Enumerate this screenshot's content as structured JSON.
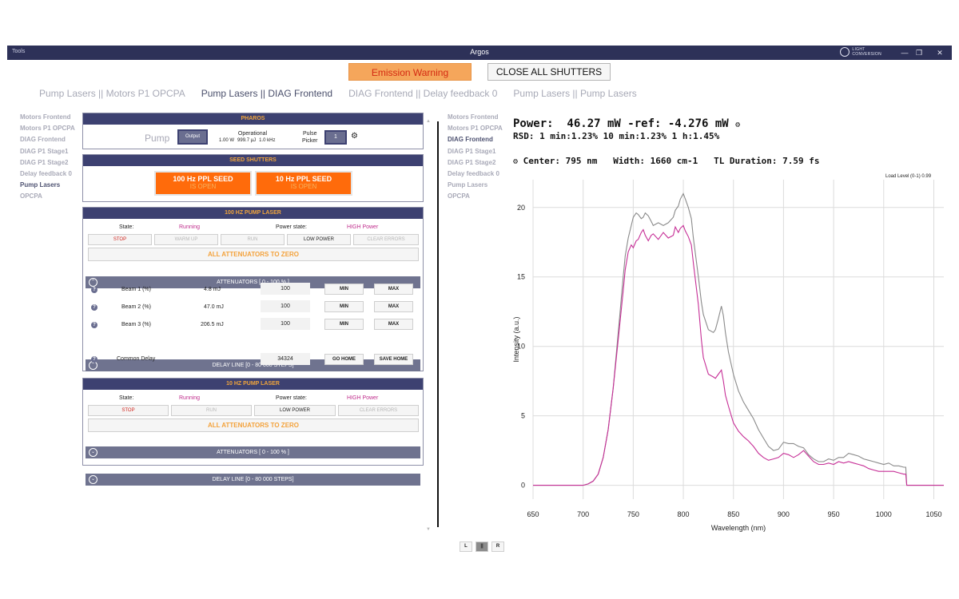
{
  "window": {
    "menu_label": "Tools",
    "title": "Argos",
    "logo_line1": "LIGHT",
    "logo_line2": "CONVERSION",
    "minimize": "—",
    "maximize": "❐",
    "close": "✕"
  },
  "top_buttons": {
    "emission_warning": "Emission Warning",
    "close_shutters": "CLOSE ALL SHUTTERS"
  },
  "tabs": [
    {
      "label": "Pump Lasers || Motors P1 OPCPA",
      "active": false
    },
    {
      "label": "Pump Lasers || DIAG Frontend",
      "active": true
    },
    {
      "label": "DIAG Frontend || Delay feedback 0",
      "active": false
    },
    {
      "label": "Pump Lasers || Pump Lasers",
      "active": false
    }
  ],
  "left_nav": [
    "Motors Frontend",
    "Motors P1 OPCPA",
    "DIAG Frontend",
    "DIAG P1 Stage1",
    "DIAG P1 Stage2",
    "Delay feedback 0",
    "Pump Lasers",
    "OPCPA"
  ],
  "left_nav_active": "Pump Lasers",
  "right_nav": [
    "Motors Frontend",
    "Motors P1 OPCPA",
    "DIAG Frontend",
    "DIAG P1 Stage1",
    "DIAG P1 Stage2",
    "Delay feedback 0",
    "Pump Lasers",
    "OPCPA"
  ],
  "right_nav_active": "DIAG Frontend",
  "pharos": {
    "header": "PHAROS",
    "pump_label": "Pump",
    "output_button": "Output",
    "status": "Operational",
    "power": "1.00 W",
    "energy": "999.7 µJ",
    "rate": "1.0 kHz",
    "pulse_picker_label1": "Pulse",
    "pulse_picker_label2": "Picker",
    "pulse_picker_value": "1",
    "settings_icon": "gear-icon"
  },
  "seed_shutters": {
    "header": "SEED SHUTTERS",
    "shutter_100": {
      "label": "100 Hz PPL SEED",
      "status": "IS OPEN"
    },
    "shutter_10": {
      "label": "10 Hz PPL SEED",
      "status": "IS OPEN"
    }
  },
  "laser_100hz": {
    "header": "100 HZ PUMP LASER",
    "state_label": "State:",
    "state_value": "Running",
    "power_state_label": "Power state:",
    "power_state_value": "HIGH Power",
    "buttons": {
      "stop": "STOP",
      "warm_up": "WARM UP",
      "run": "RUN",
      "low_power": "LOW POWER",
      "clear_errors": "CLEAR ERRORS"
    },
    "all_attenuators": "ALL ATTENUATORS TO ZERO",
    "attenuators_header": "ATTENUATORS [ 0 - 100 % ]",
    "beams": [
      {
        "name": "Beam 1 (%)",
        "energy": "4.8 mJ",
        "value": "100",
        "min": "MIN",
        "max": "MAX"
      },
      {
        "name": "Beam 2 (%)",
        "energy": "47.0 mJ",
        "value": "100",
        "min": "MIN",
        "max": "MAX"
      },
      {
        "name": "Beam 3 (%)",
        "energy": "206.5 mJ",
        "value": "100",
        "min": "MIN",
        "max": "MAX"
      }
    ],
    "delay_header": "DELAY LINE [0 - 80 000 STEPS]",
    "delay_label": "Common Delay",
    "delay_value": "34324",
    "go_home": "GO HOME",
    "save_home": "SAVE HOME"
  },
  "laser_10hz": {
    "header": "10 HZ PUMP LASER",
    "state_label": "State:",
    "state_value": "Running",
    "power_state_label": "Power state:",
    "power_state_value": "HIGH Power",
    "buttons": {
      "stop": "STOP",
      "run": "RUN",
      "low_power": "LOW POWER",
      "clear_errors": "CLEAR ERRORS"
    },
    "all_attenuators": "ALL ATTENUATORS TO ZERO",
    "attenuators_header": "ATTENUATORS [ 0 - 100 % ]",
    "delay_header": "DELAY LINE [0 - 80 000 STEPS]"
  },
  "split_buttons": {
    "left": "L",
    "center": "||",
    "right": "R"
  },
  "readouts": {
    "power_line": "Power:  46.27 mW -ref: -4.276 mW",
    "rsd_line": "RSD: 1 min:1.23% 10 min:1.23% 1 h:1.45%",
    "spectrum_line": "Center: 795 nm   Width: 1660 cm-1   TL Duration: 7.59 fs",
    "load_level": "Load Level (0-1) 0.99"
  },
  "chart_data": {
    "type": "line",
    "title": "",
    "xlabel": "Wavelength (nm)",
    "ylabel": "Intensity (a.u.)",
    "xlim": [
      650,
      1060
    ],
    "ylim": [
      -1,
      22
    ],
    "xticks": [
      650,
      700,
      750,
      800,
      850,
      900,
      950,
      1000,
      1050
    ],
    "yticks": [
      0,
      5,
      10,
      15,
      20
    ],
    "grid": true,
    "series": [
      {
        "color": "#8a8a8a",
        "x": [
          650,
          700,
          705,
          710,
          715,
          720,
          725,
          730,
          735,
          740,
          742,
          745,
          748,
          750,
          753,
          755,
          758,
          760,
          762,
          765,
          768,
          770,
          775,
          780,
          785,
          790,
          792,
          795,
          797,
          800,
          802,
          805,
          808,
          810,
          815,
          818,
          820,
          825,
          830,
          832,
          835,
          838,
          840,
          842,
          845,
          850,
          855,
          860,
          865,
          870,
          875,
          880,
          885,
          890,
          895,
          900,
          905,
          910,
          915,
          920,
          925,
          930,
          935,
          940,
          945,
          950,
          955,
          960,
          965,
          970,
          975,
          980,
          985,
          990,
          995,
          1000,
          1005,
          1010,
          1015,
          1020,
          1022,
          1023,
          1030,
          1040,
          1050,
          1060
        ],
        "y": [
          0,
          0,
          0.1,
          0.3,
          0.8,
          2,
          4,
          7,
          11,
          15,
          16.5,
          17.8,
          18.7,
          19.3,
          19.6,
          19.5,
          19.2,
          19.3,
          19.6,
          19.4,
          19.0,
          18.7,
          18.9,
          18.7,
          18.9,
          19.3,
          19.8,
          20.1,
          20.6,
          21.0,
          20.6,
          20.0,
          19.2,
          17.8,
          15.0,
          13.2,
          12.3,
          11.2,
          11.0,
          11.2,
          12.0,
          12.9,
          12.2,
          11.0,
          9.6,
          8.0,
          6.8,
          6.0,
          5.4,
          4.8,
          4.0,
          3.4,
          2.8,
          2.5,
          2.6,
          3.1,
          3.0,
          3.0,
          2.8,
          2.7,
          2.2,
          1.9,
          1.7,
          1.7,
          1.9,
          1.8,
          2.0,
          2.0,
          2.3,
          2.2,
          2.1,
          1.9,
          1.8,
          1.7,
          1.6,
          1.5,
          1.6,
          1.4,
          1.4,
          1.3,
          1.3,
          0,
          0,
          0,
          0,
          0
        ]
      },
      {
        "color": "#c62e96",
        "x": [
          650,
          700,
          705,
          710,
          715,
          720,
          725,
          730,
          735,
          740,
          742,
          745,
          748,
          750,
          753,
          755,
          758,
          760,
          762,
          765,
          768,
          770,
          775,
          780,
          785,
          790,
          792,
          795,
          797,
          800,
          802,
          805,
          808,
          810,
          815,
          818,
          820,
          825,
          830,
          832,
          835,
          838,
          840,
          842,
          845,
          850,
          855,
          860,
          865,
          870,
          875,
          880,
          885,
          890,
          895,
          900,
          905,
          910,
          915,
          920,
          925,
          930,
          935,
          940,
          945,
          950,
          955,
          960,
          965,
          970,
          975,
          980,
          985,
          990,
          995,
          1000,
          1005,
          1010,
          1015,
          1020,
          1022,
          1023,
          1030,
          1040,
          1050,
          1060
        ],
        "y": [
          0,
          0,
          0.1,
          0.3,
          0.8,
          2,
          4,
          7,
          10.5,
          14,
          15.5,
          16.8,
          17.3,
          17.1,
          17.6,
          17.7,
          18.2,
          18.4,
          18.0,
          17.6,
          18.0,
          18.1,
          17.7,
          18.2,
          17.8,
          18.0,
          18.6,
          18.2,
          18.5,
          18.7,
          18.3,
          17.9,
          17.3,
          16.0,
          13.0,
          10.5,
          9.2,
          8.0,
          7.8,
          7.7,
          8.0,
          8.3,
          7.5,
          6.5,
          5.7,
          4.5,
          3.9,
          3.5,
          3.2,
          2.8,
          2.3,
          2.0,
          1.8,
          1.9,
          2.0,
          2.3,
          2.2,
          2.0,
          2.2,
          2.5,
          2.1,
          1.7,
          1.5,
          1.5,
          1.6,
          1.5,
          1.7,
          1.6,
          1.7,
          1.6,
          1.5,
          1.4,
          1.2,
          1.1,
          1.0,
          1.0,
          1.0,
          1.0,
          0.9,
          0.8,
          0.8,
          0,
          0,
          0,
          0,
          0
        ]
      }
    ]
  }
}
